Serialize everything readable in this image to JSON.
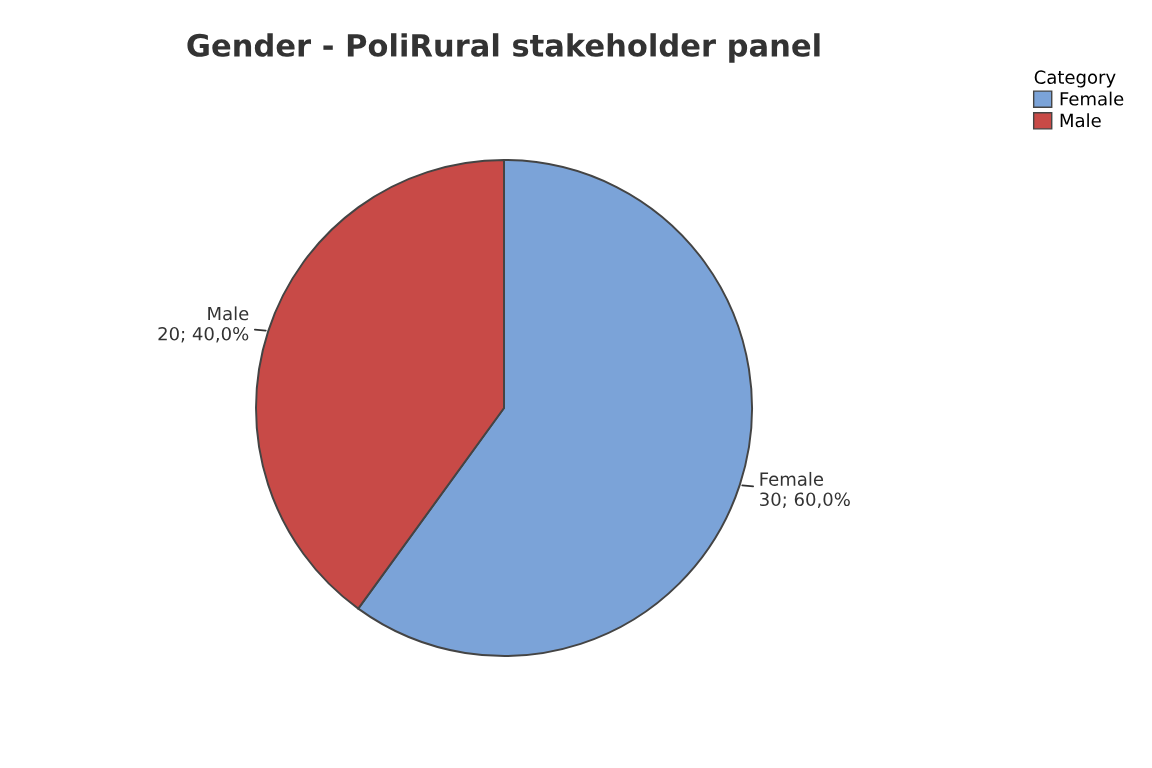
{
  "chart_data": {
    "type": "pie",
    "title": "Gender - PoliRural stakeholder panel",
    "categories": [
      "Female",
      "Male"
    ],
    "values": [
      30,
      20
    ],
    "colors": [
      "#7ba3d8",
      "#c84a47"
    ],
    "value_labels": [
      "Female\n30; 60,0%",
      "Male\n20; 40,0%"
    ],
    "legend": "top right",
    "legend_title": "Category"
  }
}
